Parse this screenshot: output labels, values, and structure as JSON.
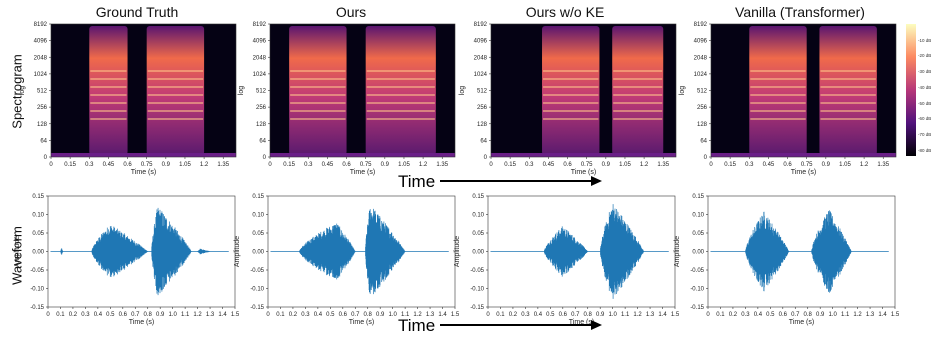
{
  "row_labels": {
    "spectrogram": "Spectrogram",
    "waveform": "Waveform"
  },
  "time_label": "Time",
  "colorbar": {
    "ticks": [
      "-10 dB",
      "-20 dB",
      "-30 dB",
      "-40 dB",
      "-50 dB",
      "-60 dB",
      "-70 dB",
      "-80 dB"
    ],
    "colormap": "magma"
  },
  "chart_data": [
    {
      "type": "heatmap",
      "title": "Ground Truth",
      "xlabel": "Time (s)",
      "ylabel": "log",
      "xticks": [
        "0",
        "0.15",
        "0.3",
        "0.45",
        "0.6",
        "0.75",
        "0.9",
        "1.05",
        "1.2",
        "1.35"
      ],
      "xlim": [
        0,
        1.45
      ],
      "yticks": [
        "0",
        "64",
        "128",
        "256",
        "512",
        "1024",
        "2048",
        "4096",
        "8192"
      ],
      "y_scale": "log",
      "segments": [
        [
          0.3,
          0.6
        ],
        [
          0.75,
          1.2
        ]
      ]
    },
    {
      "type": "heatmap",
      "title": "Ours",
      "xlabel": "Time (s)",
      "ylabel": "log",
      "xticks": [
        "0",
        "0.15",
        "0.3",
        "0.45",
        "0.6",
        "0.75",
        "0.9",
        "1.05",
        "1.2",
        "1.35"
      ],
      "xlim": [
        0,
        1.45
      ],
      "yticks": [
        "0",
        "64",
        "128",
        "256",
        "512",
        "1024",
        "2048",
        "4096",
        "8192"
      ],
      "y_scale": "log",
      "segments": [
        [
          0.15,
          0.6
        ],
        [
          0.75,
          1.3
        ]
      ]
    },
    {
      "type": "heatmap",
      "title": "Ours w/o KE",
      "xlabel": "Time (s)",
      "ylabel": "log",
      "xticks": [
        "0",
        "0.15",
        "0.3",
        "0.45",
        "0.6",
        "0.75",
        "0.9",
        "1.05",
        "1.2",
        "1.35"
      ],
      "xlim": [
        0,
        1.45
      ],
      "yticks": [
        "0",
        "64",
        "128",
        "256",
        "512",
        "1024",
        "2048",
        "4096",
        "8192"
      ],
      "y_scale": "log",
      "segments": [
        [
          0.4,
          0.85
        ],
        [
          0.95,
          1.35
        ]
      ]
    },
    {
      "type": "heatmap",
      "title": "Vanilla (Transformer)",
      "xlabel": "Time (s)",
      "ylabel": "log",
      "xticks": [
        "0",
        "0.15",
        "0.3",
        "0.45",
        "0.6",
        "0.75",
        "0.9",
        "1.05",
        "1.2",
        "1.35"
      ],
      "xlim": [
        0,
        1.45
      ],
      "yticks": [
        "0",
        "64",
        "128",
        "256",
        "512",
        "1024",
        "2048",
        "4096",
        "8192"
      ],
      "y_scale": "log",
      "segments": [
        [
          0.3,
          0.75
        ],
        [
          0.85,
          1.3
        ]
      ]
    },
    {
      "type": "line",
      "title": "",
      "xlabel": "Time (s)",
      "ylabel": "Amplitude",
      "xticks": [
        "0",
        "0.1",
        "0.2",
        "0.3",
        "0.4",
        "0.5",
        "0.6",
        "0.7",
        "0.8",
        "0.9",
        "1.0",
        "1.1",
        "1.2",
        "1.3",
        "1.4",
        "1.5"
      ],
      "yticks": [
        "0.15",
        "0.10",
        "0.05",
        "0.00",
        "-0.05",
        "-0.10",
        "-0.15"
      ],
      "xlim": [
        0,
        1.5
      ],
      "ylim": [
        -0.15,
        0.15
      ],
      "bursts": [
        {
          "start": 0.35,
          "peak": 0.5,
          "end": 0.8,
          "max": 0.075
        },
        {
          "start": 0.83,
          "peak": 0.88,
          "end": 1.15,
          "max": 0.125
        },
        {
          "start": 0.1,
          "peak": 0.11,
          "end": 0.12,
          "max": 0.01
        },
        {
          "start": 1.2,
          "peak": 1.22,
          "end": 1.3,
          "max": 0.008
        }
      ]
    },
    {
      "type": "line",
      "title": "",
      "xlabel": "Time (s)",
      "ylabel": "Amplitude",
      "xticks": [
        "0",
        "0.1",
        "0.2",
        "0.3",
        "0.4",
        "0.5",
        "0.6",
        "0.7",
        "0.8",
        "0.9",
        "1.0",
        "1.1",
        "1.2",
        "1.3",
        "1.4",
        "1.5"
      ],
      "yticks": [
        "0.15",
        "0.10",
        "0.05",
        "0.00",
        "-0.05",
        "-0.10",
        "-0.15"
      ],
      "xlim": [
        0,
        1.5
      ],
      "ylim": [
        -0.15,
        0.15
      ],
      "bursts": [
        {
          "start": 0.25,
          "peak": 0.55,
          "end": 0.7,
          "max": 0.08
        },
        {
          "start": 0.78,
          "peak": 0.82,
          "end": 1.1,
          "max": 0.13
        }
      ]
    },
    {
      "type": "line",
      "title": "",
      "xlabel": "Time (s)",
      "ylabel": "Amplitude",
      "xticks": [
        "0",
        "0.1",
        "0.2",
        "0.3",
        "0.4",
        "0.5",
        "0.6",
        "0.7",
        "0.8",
        "0.9",
        "1.0",
        "1.1",
        "1.2",
        "1.3",
        "1.4",
        "1.5"
      ],
      "yticks": [
        "0.15",
        "0.10",
        "0.05",
        "0.00",
        "-0.05",
        "-0.10",
        "-0.15"
      ],
      "xlim": [
        0,
        1.5
      ],
      "ylim": [
        -0.15,
        0.15
      ],
      "bursts": [
        {
          "start": 0.45,
          "peak": 0.6,
          "end": 0.8,
          "max": 0.07
        },
        {
          "start": 0.9,
          "peak": 1.0,
          "end": 1.25,
          "max": 0.135
        }
      ]
    },
    {
      "type": "line",
      "title": "",
      "xlabel": "Time (s)",
      "ylabel": "Amplitude",
      "xticks": [
        "0",
        "0.1",
        "0.2",
        "0.3",
        "0.4",
        "0.5",
        "0.6",
        "0.7",
        "0.8",
        "0.9",
        "1.0",
        "1.1",
        "1.2",
        "1.3",
        "1.4",
        "1.5"
      ],
      "yticks": [
        "0.15",
        "0.10",
        "0.05",
        "0.00",
        "-0.05",
        "-0.10",
        "-0.15"
      ],
      "xlim": [
        0,
        1.5
      ],
      "ylim": [
        -0.15,
        0.15
      ],
      "bursts": [
        {
          "start": 0.3,
          "peak": 0.45,
          "end": 0.65,
          "max": 0.11
        },
        {
          "start": 0.83,
          "peak": 0.97,
          "end": 1.15,
          "max": 0.115
        }
      ]
    }
  ]
}
